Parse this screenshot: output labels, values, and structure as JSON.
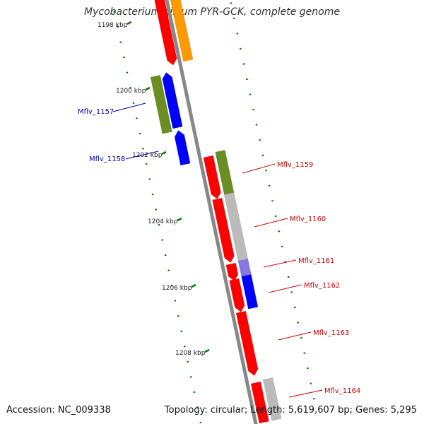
{
  "title": "Mycobacterium gilvum PYR-GCK, complete genome",
  "accession_label": "Accession: NC_009338",
  "topology_label": "Topology: circular; Length: 5,619,607 bp; Genes: 5,295",
  "colors": {
    "forward_cds": "#ff0000",
    "reverse_cds": "#0000ff",
    "label_forward": "#cc0000",
    "label_reverse": "#0000aa",
    "olive": "#6b8e23",
    "orange": "#ff9900",
    "grey": "#bbbbbb",
    "backbone": "#888888",
    "tick": "#007700"
  },
  "kbp_ticks": [
    "1198 kbp",
    "1200 kbp",
    "1202 kbp",
    "1204 kbp",
    "1206 kbp",
    "1208 kbp"
  ],
  "gene_labels": [
    {
      "text": "Mflv_1157",
      "strand": "reverse"
    },
    {
      "text": "Mflv_1158",
      "strand": "reverse"
    },
    {
      "text": "Mflv_1159",
      "strand": "forward"
    },
    {
      "text": "Mflv_1160",
      "strand": "forward"
    },
    {
      "text": "Mflv_1161",
      "strand": "forward"
    },
    {
      "text": "Mflv_1162",
      "strand": "forward"
    },
    {
      "text": "Mflv_1163",
      "strand": "forward"
    },
    {
      "text": "Mflv_1164",
      "strand": "forward"
    }
  ]
}
